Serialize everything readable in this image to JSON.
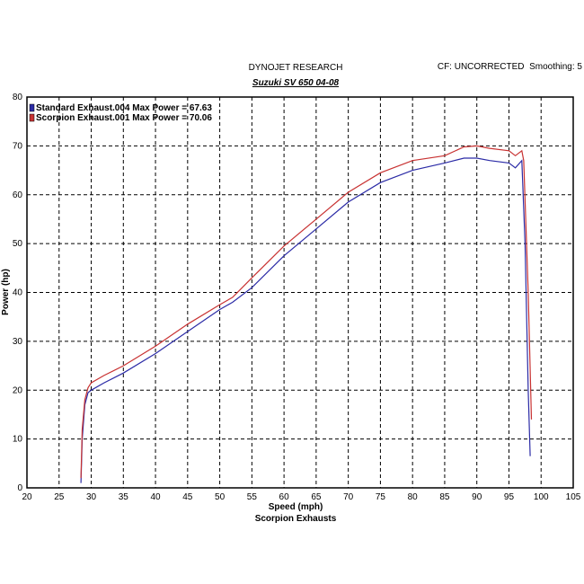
{
  "chart_data": {
    "type": "line",
    "title": "DYNOJET RESEARCH",
    "subtitle": "Suzuki SV 650 04-08",
    "note": "CF: UNCORRECTED  Smoothing: 5",
    "x_label": "Speed (mph)",
    "y_label": "Power (hp)",
    "caption": "Scorpion Exhausts",
    "xlim": [
      20,
      105
    ],
    "xticks": [
      20,
      25,
      30,
      35,
      40,
      45,
      50,
      55,
      60,
      65,
      70,
      75,
      80,
      85,
      90,
      95,
      100,
      105
    ],
    "ylim": [
      0,
      80
    ],
    "yticks": [
      0,
      10,
      20,
      30,
      40,
      50,
      60,
      70,
      80
    ],
    "grid": true,
    "series": [
      {
        "name": "Standard Exhaust.004 Max Power = 67.63",
        "color": "#2b2ba6",
        "x": [
          28.4,
          28.6,
          29,
          29.5,
          30,
          32,
          35,
          40,
          45,
          50,
          52,
          55,
          60,
          65,
          70,
          75,
          80,
          85,
          88,
          90,
          92,
          95,
          96,
          97,
          97.5,
          98,
          98.3
        ],
        "values": [
          1,
          10,
          17,
          19.5,
          20,
          21.5,
          23.5,
          27.5,
          32,
          36.5,
          38,
          41,
          47.5,
          53,
          58.5,
          62.5,
          65,
          66.5,
          67.5,
          67.5,
          67,
          66.5,
          65.5,
          67,
          50,
          20,
          6.5
        ]
      },
      {
        "name": "Scorpion Exhaust.001 Max Power = 70.06",
        "color": "#c83232",
        "x": [
          28.4,
          28.6,
          29,
          29.5,
          30,
          32,
          35,
          40,
          45,
          50,
          52,
          55,
          60,
          65,
          70,
          75,
          80,
          85,
          88,
          90,
          92,
          95,
          96,
          97,
          97.3,
          98,
          98.5
        ],
        "values": [
          2,
          12,
          18,
          20.5,
          21.5,
          23,
          25,
          29,
          33.5,
          37.5,
          39,
          43,
          49.5,
          55,
          60.5,
          64.5,
          67,
          68,
          69.8,
          70,
          69.5,
          69,
          68,
          69,
          67,
          40,
          14
        ]
      }
    ]
  }
}
